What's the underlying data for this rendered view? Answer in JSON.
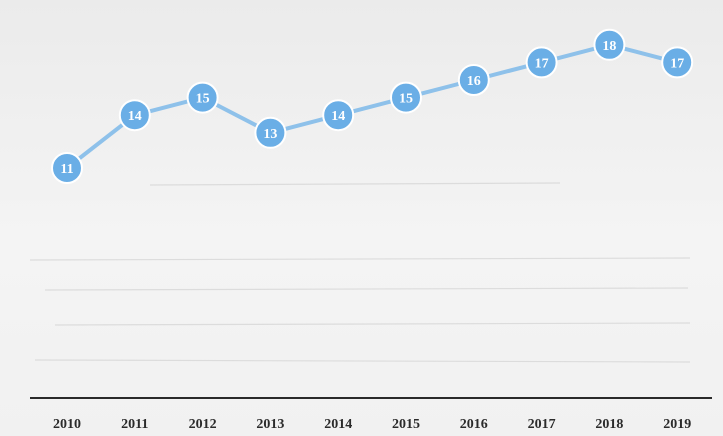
{
  "colors": {
    "series": "#8ec1ea",
    "marker": "#6aaee6",
    "axis": "#2a2a2a",
    "tick_text": "#2b2b2b",
    "label_text": "#ffffff",
    "background": "#efefef"
  },
  "chart_data": {
    "type": "line",
    "title": "",
    "xlabel": "",
    "ylabel": "",
    "categories": [
      "2010",
      "2011",
      "2012",
      "2013",
      "2014",
      "2015",
      "2016",
      "2017",
      "2018",
      "2019"
    ],
    "series": [
      {
        "values": [
          11,
          14,
          15,
          13,
          14,
          15,
          16,
          17,
          18,
          17
        ],
        "labels": [
          "11",
          "14",
          "15",
          "13",
          "14",
          "15",
          "16",
          "17",
          "18",
          "17"
        ]
      }
    ],
    "ylim": [
      0,
      20
    ],
    "grid": false,
    "legend": "none",
    "data_labels": true
  }
}
